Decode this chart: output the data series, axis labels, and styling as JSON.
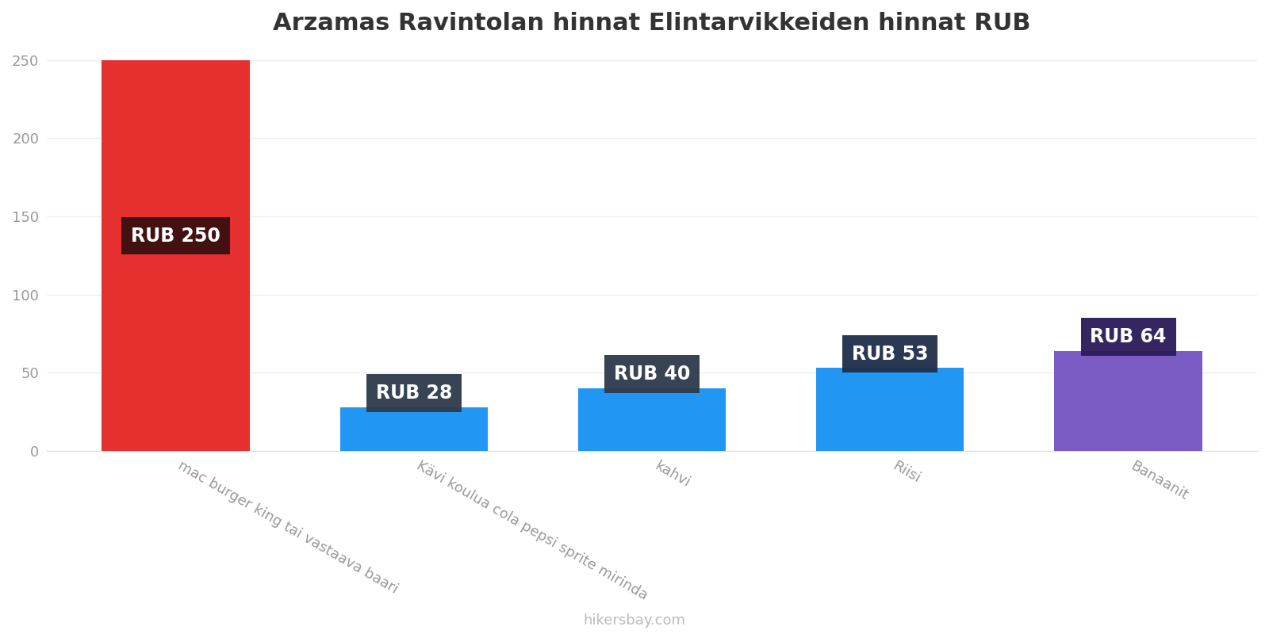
{
  "title": "Arzamas Ravintolan hinnat Elintarvikkeiden hinnat RUB",
  "categories": [
    "mac burger king tai vastaava baari",
    "Kävi koulua cola pepsi sprite mirinda",
    "kahvi",
    "Riisi",
    "Banaanit"
  ],
  "values": [
    250,
    28,
    40,
    53,
    64
  ],
  "bar_colors": [
    "#e63030",
    "#2196f3",
    "#2196f3",
    "#2196f3",
    "#7b5bc4"
  ],
  "label_bg_colors": [
    "#3a1010",
    "#2d3a4a",
    "#2d3a4a",
    "#1e2d4a",
    "#2a1a5a"
  ],
  "ylim": [
    0,
    255
  ],
  "yticks": [
    0,
    50,
    100,
    150,
    200,
    250
  ],
  "watermark": "hikersbay.com",
  "title_fontsize": 22,
  "label_fontsize": 17,
  "tick_fontsize": 13,
  "watermark_fontsize": 13,
  "bg_color": "#ffffff",
  "label_color": "#ffffff",
  "bar_width": 0.62
}
